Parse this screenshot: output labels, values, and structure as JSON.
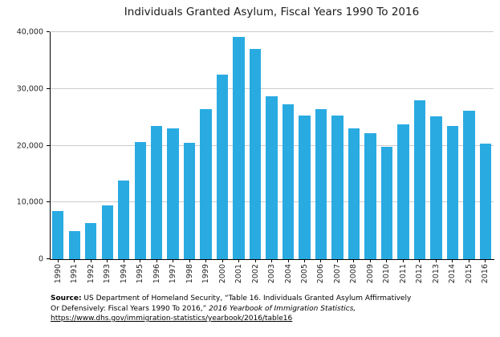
{
  "colors": {
    "bar": "#29abe2",
    "grid": "#cccccc",
    "axis": "#000000"
  },
  "chart_data": {
    "type": "bar",
    "title": "Individuals Granted Asylum, Fiscal Years 1990 To 2016",
    "xlabel": "",
    "ylabel": "",
    "categories": [
      "1990",
      "1991",
      "1992",
      "1993",
      "1994",
      "1995",
      "1996",
      "1997",
      "1998",
      "1999",
      "2000",
      "2001",
      "2002",
      "2003",
      "2004",
      "2005",
      "2006",
      "2007",
      "2008",
      "2009",
      "2010",
      "2011",
      "2012",
      "2013",
      "2014",
      "2015",
      "2016"
    ],
    "values": [
      8500,
      5000,
      6300,
      9500,
      13800,
      20700,
      23500,
      23000,
      20500,
      26500,
      32500,
      39200,
      37000,
      28700,
      27300,
      25300,
      26400,
      25300,
      23000,
      22200,
      19800,
      23700,
      28000,
      25100,
      23400,
      26100,
      20400
    ],
    "ylim": [
      0,
      40000
    ],
    "yticks": [
      0,
      10000,
      20000,
      30000,
      40000
    ],
    "ytick_labels": [
      "0",
      "10,000",
      "20,000",
      "30,000",
      "40,000"
    ],
    "grid": "horizontal",
    "legend": "none"
  },
  "source": {
    "label": "Source:",
    "line1_rest": " US Department of Homeland Security, “Table 16. Individuals Granted Asylum Affirmatively",
    "line2_text": "Or Defensively: Fiscal Years 1990 To 2016,”  ",
    "line2_italic": "2016 Yearbook of Immigration Statistics,",
    "link": "https://www.dhs.gov/immigration-statistics/yearbook/2016/table16"
  }
}
